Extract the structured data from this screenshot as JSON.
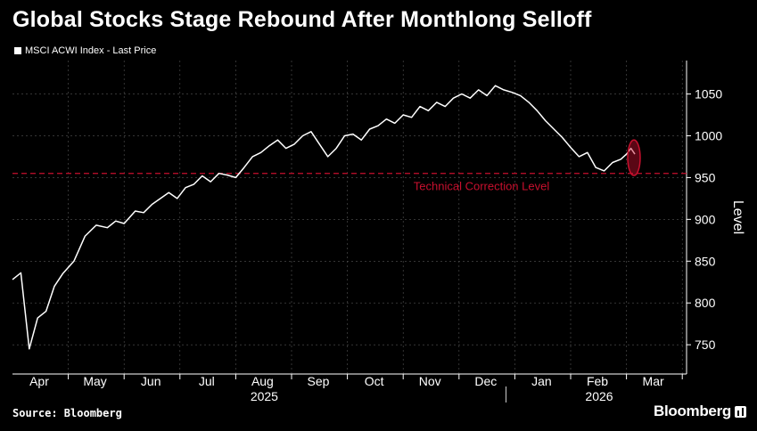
{
  "title": "Global Stocks Stage Rebound After Monthlong Selloff",
  "legend_label": "MSCI ACWI Index - Last Price",
  "source": "Source: Bloomberg",
  "brand": "Bloomberg",
  "colors": {
    "background": "#000000",
    "line": "#ffffff",
    "grid": "#555555",
    "threshold": "#c8102e"
  },
  "chart_data": {
    "type": "line",
    "title": "Global Stocks Stage Rebound After Monthlong Selloff",
    "ylabel": "Level",
    "xlabel": "",
    "ylim": [
      715,
      1090
    ],
    "yticks": [
      750,
      800,
      850,
      900,
      950,
      1000,
      1050
    ],
    "x_month_labels": [
      "Apr",
      "May",
      "Jun",
      "Jul",
      "Aug",
      "Sep",
      "Oct",
      "Nov",
      "Dec",
      "Jan",
      "Feb",
      "Mar"
    ],
    "year_labels": [
      {
        "label": "2025",
        "under": "Aug"
      },
      {
        "label": "2026",
        "under": "Feb"
      }
    ],
    "threshold": {
      "value": 955,
      "label": "Technical Correction Level"
    },
    "highlight": {
      "note": "latest rebound",
      "index_from": 66
    },
    "series": [
      {
        "name": "MSCI ACWI Index - Last Price",
        "x_month": [
          0.0,
          0.15,
          0.3,
          0.45,
          0.6,
          0.75,
          0.9,
          1.1,
          1.3,
          1.5,
          1.7,
          1.85,
          2.0,
          2.2,
          2.35,
          2.5,
          2.65,
          2.8,
          2.95,
          3.1,
          3.25,
          3.4,
          3.55,
          3.7,
          3.85,
          4.0,
          4.15,
          4.3,
          4.45,
          4.6,
          4.75,
          4.9,
          5.05,
          5.2,
          5.35,
          5.5,
          5.65,
          5.8,
          5.95,
          6.1,
          6.25,
          6.4,
          6.55,
          6.7,
          6.85,
          7.0,
          7.15,
          7.3,
          7.45,
          7.6,
          7.75,
          7.9,
          8.05,
          8.2,
          8.35,
          8.5,
          8.65,
          8.8,
          8.95,
          9.1,
          9.25,
          9.4,
          9.55,
          9.7,
          9.85,
          10.0,
          10.15,
          10.3,
          10.45,
          10.6,
          10.75,
          10.9,
          11.0,
          11.08,
          11.15
        ],
        "values": [
          828,
          836,
          745,
          782,
          790,
          820,
          835,
          850,
          880,
          893,
          890,
          898,
          895,
          910,
          908,
          918,
          925,
          932,
          925,
          938,
          942,
          952,
          945,
          955,
          953,
          950,
          962,
          975,
          980,
          988,
          995,
          985,
          990,
          1000,
          1005,
          990,
          975,
          985,
          1000,
          1002,
          995,
          1008,
          1012,
          1020,
          1015,
          1025,
          1022,
          1035,
          1030,
          1040,
          1035,
          1045,
          1050,
          1045,
          1055,
          1048,
          1060,
          1055,
          1052,
          1048,
          1040,
          1030,
          1018,
          1008,
          998,
          986,
          975,
          980,
          962,
          958,
          968,
          972,
          978,
          985,
          978
        ]
      }
    ]
  }
}
